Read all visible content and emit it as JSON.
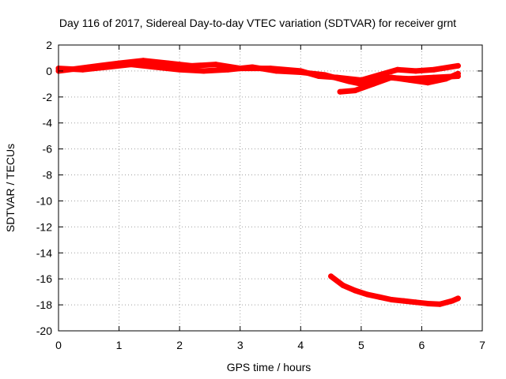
{
  "chart_data": {
    "type": "scatter",
    "title": "Day 116 of 2017, Sidereal Day-to-day VTEC variation (SDTVAR) for receiver grnt",
    "xlabel": "GPS time / hours",
    "ylabel": "SDTVAR / TECUs",
    "xlim": [
      0,
      7
    ],
    "ylim": [
      -20,
      2
    ],
    "x_ticks": [
      0,
      1,
      2,
      3,
      4,
      5,
      6,
      7
    ],
    "y_ticks": [
      2,
      0,
      -2,
      -4,
      -6,
      -8,
      -10,
      -12,
      -14,
      -16,
      -18,
      -20
    ],
    "grid": true,
    "legend": "none",
    "color": "#ff0000",
    "series": [
      {
        "values": [
          {
            "x": 0.0,
            "y": 0.0
          },
          {
            "x": 0.5,
            "y": 0.3
          },
          {
            "x": 1.0,
            "y": 0.6
          },
          {
            "x": 1.4,
            "y": 0.8
          },
          {
            "x": 1.8,
            "y": 0.6
          },
          {
            "x": 2.2,
            "y": 0.4
          },
          {
            "x": 2.6,
            "y": 0.5
          },
          {
            "x": 3.0,
            "y": 0.2
          },
          {
            "x": 3.5,
            "y": 0.2
          },
          {
            "x": 4.0,
            "y": 0.0
          },
          {
            "x": 4.3,
            "y": -0.4
          },
          {
            "x": 4.6,
            "y": -0.5
          },
          {
            "x": 5.0,
            "y": -0.7
          },
          {
            "x": 5.3,
            "y": -0.3
          },
          {
            "x": 5.6,
            "y": 0.1
          },
          {
            "x": 5.9,
            "y": 0.0
          },
          {
            "x": 6.2,
            "y": 0.1
          },
          {
            "x": 6.6,
            "y": 0.4
          }
        ]
      },
      {
        "values": [
          {
            "x": 0.0,
            "y": 0.2
          },
          {
            "x": 0.4,
            "y": 0.1
          },
          {
            "x": 0.8,
            "y": 0.3
          },
          {
            "x": 1.2,
            "y": 0.5
          },
          {
            "x": 1.6,
            "y": 0.3
          },
          {
            "x": 2.0,
            "y": 0.1
          },
          {
            "x": 2.4,
            "y": 0.0
          },
          {
            "x": 2.8,
            "y": 0.1
          },
          {
            "x": 3.2,
            "y": 0.3
          },
          {
            "x": 3.6,
            "y": 0.0
          },
          {
            "x": 4.0,
            "y": -0.1
          },
          {
            "x": 4.4,
            "y": -0.3
          },
          {
            "x": 4.8,
            "y": -0.8
          },
          {
            "x": 5.0,
            "y": -1.0
          },
          {
            "x": 5.4,
            "y": -0.5
          },
          {
            "x": 5.8,
            "y": -0.6
          },
          {
            "x": 6.2,
            "y": -0.5
          },
          {
            "x": 6.6,
            "y": -0.4
          }
        ]
      },
      {
        "values": [
          {
            "x": 4.65,
            "y": -1.6
          },
          {
            "x": 4.9,
            "y": -1.5
          },
          {
            "x": 5.2,
            "y": -1.0
          },
          {
            "x": 5.5,
            "y": -0.5
          },
          {
            "x": 5.8,
            "y": -0.7
          },
          {
            "x": 6.1,
            "y": -0.9
          },
          {
            "x": 6.4,
            "y": -0.6
          },
          {
            "x": 6.6,
            "y": -0.2
          }
        ]
      },
      {
        "values": [
          {
            "x": 4.5,
            "y": -15.8
          },
          {
            "x": 4.7,
            "y": -16.5
          },
          {
            "x": 4.9,
            "y": -16.9
          },
          {
            "x": 5.1,
            "y": -17.2
          },
          {
            "x": 5.3,
            "y": -17.4
          },
          {
            "x": 5.5,
            "y": -17.6
          },
          {
            "x": 5.7,
            "y": -17.7
          },
          {
            "x": 5.9,
            "y": -17.8
          },
          {
            "x": 6.1,
            "y": -17.9
          },
          {
            "x": 6.3,
            "y": -17.95
          },
          {
            "x": 6.5,
            "y": -17.7
          },
          {
            "x": 6.6,
            "y": -17.5
          }
        ]
      }
    ]
  }
}
